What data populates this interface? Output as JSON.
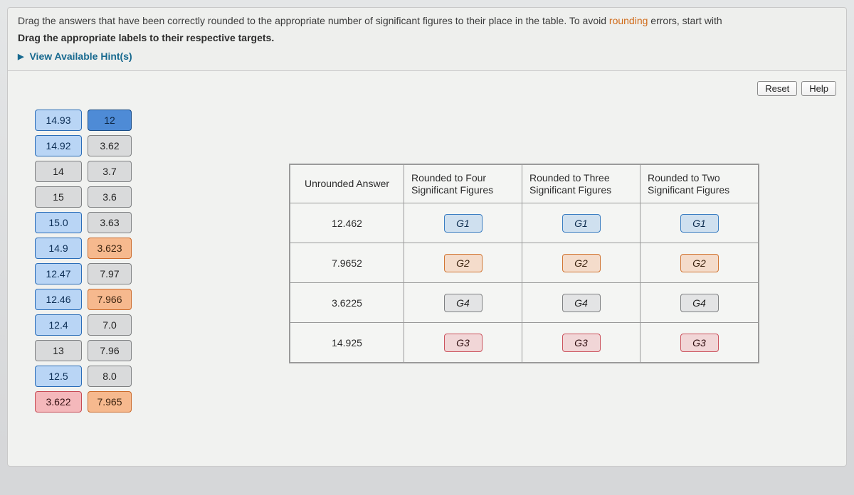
{
  "instructions": {
    "line1_pre": "Drag the answers that have been correctly rounded to the appropriate number of significant figures to their place in the table. To avoid ",
    "line1_accent": "rounding",
    "line1_post": " errors, start with",
    "line2": "Drag the appropriate labels to their respective targets.",
    "hint": "View Available Hint(s)"
  },
  "buttons": {
    "reset": "Reset",
    "help": "Help"
  },
  "labels": {
    "rows": [
      [
        "14.93",
        "12"
      ],
      [
        "14.92",
        "3.62"
      ],
      [
        "14",
        "3.7"
      ],
      [
        "15",
        "3.6"
      ],
      [
        "15.0",
        "3.63"
      ],
      [
        "14.9",
        "3.623"
      ],
      [
        "12.47",
        "7.97"
      ],
      [
        "12.46",
        "7.966"
      ],
      [
        "12.4",
        "7.0"
      ],
      [
        "13",
        "7.96"
      ],
      [
        "12.5",
        "8.0"
      ],
      [
        "3.622",
        "7.965"
      ]
    ],
    "styles": [
      [
        "blue",
        "blue-s"
      ],
      [
        "blue",
        "grey"
      ],
      [
        "grey",
        "grey"
      ],
      [
        "grey",
        "grey"
      ],
      [
        "blue",
        "grey"
      ],
      [
        "blue",
        "orange"
      ],
      [
        "blue",
        "grey"
      ],
      [
        "blue",
        "orange"
      ],
      [
        "blue",
        "grey"
      ],
      [
        "grey",
        "grey"
      ],
      [
        "blue",
        "grey"
      ],
      [
        "red",
        "orange"
      ]
    ]
  },
  "table": {
    "headers": [
      "Unrounded Answer",
      "Rounded to Four\nSignificant Figures",
      "Rounded to Three\nSignificant Figures",
      "Rounded to Two\nSignificant Figures"
    ],
    "rows": [
      {
        "unrounded": "12.462",
        "targets": [
          "G1",
          "G1",
          "G1"
        ],
        "style": "tg-blue"
      },
      {
        "unrounded": "7.9652",
        "targets": [
          "G2",
          "G2",
          "G2"
        ],
        "style": "tg-orange"
      },
      {
        "unrounded": "3.6225",
        "targets": [
          "G4",
          "G4",
          "G4"
        ],
        "style": "tg-grey"
      },
      {
        "unrounded": "14.925",
        "targets": [
          "G3",
          "G3",
          "G3"
        ],
        "style": "tg-red"
      }
    ]
  }
}
